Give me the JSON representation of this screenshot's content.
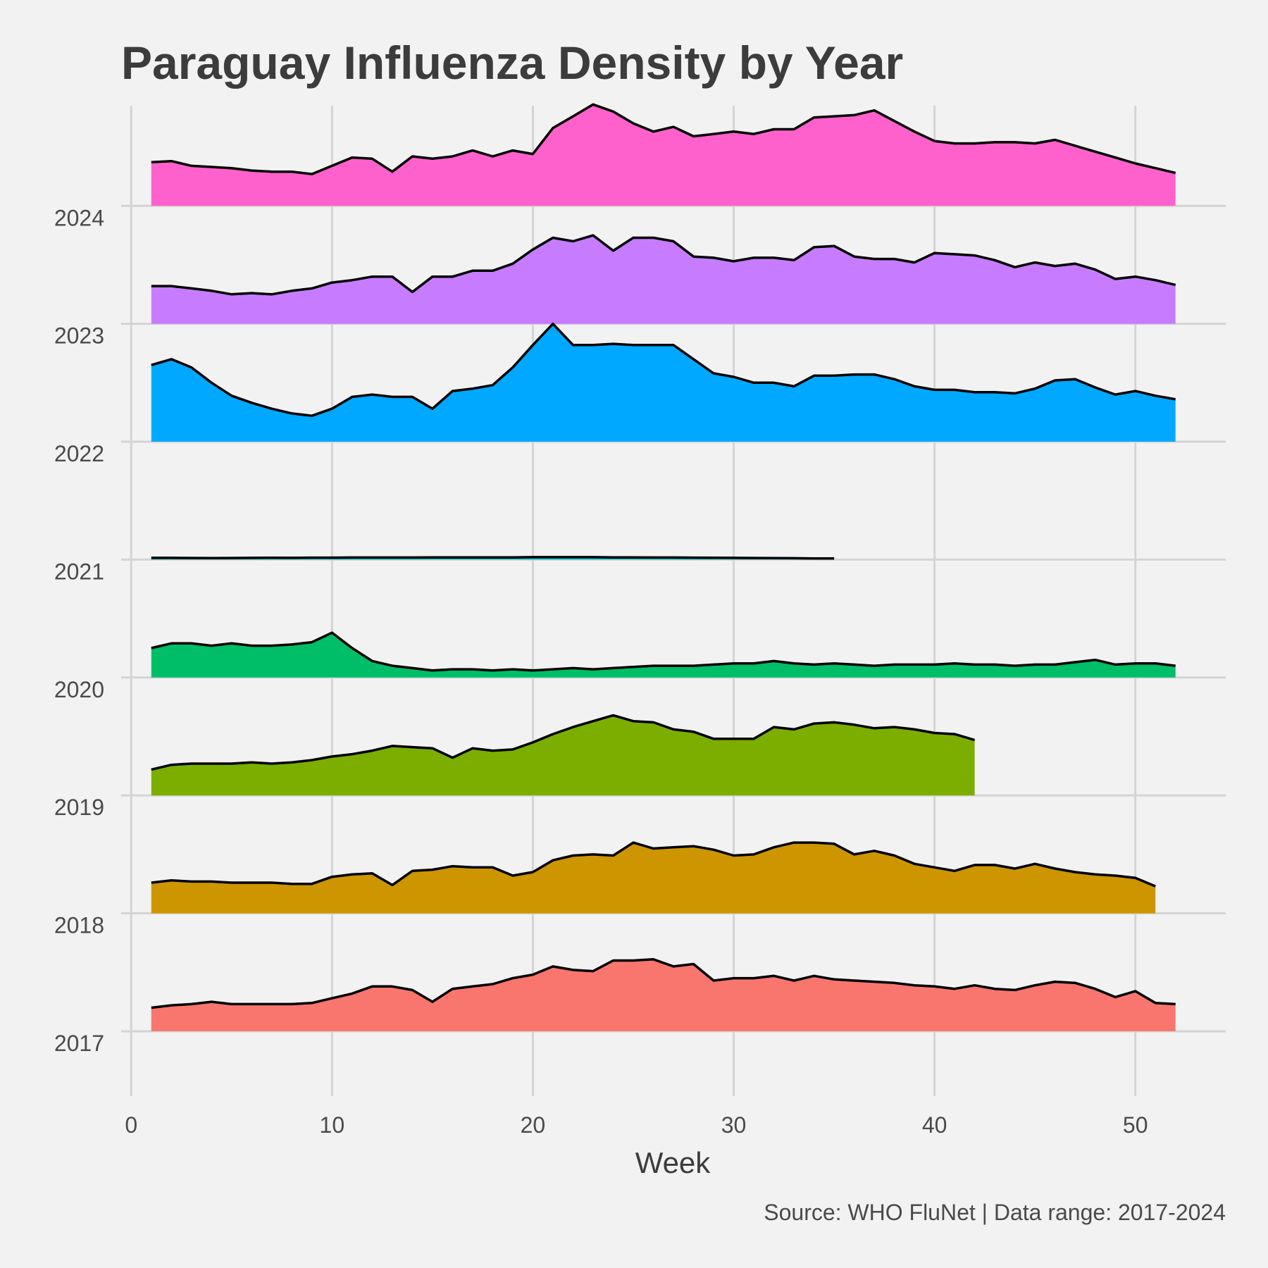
{
  "chart_data": {
    "type": "area",
    "title": "Paraguay Influenza Density by Year",
    "xlabel": "Week",
    "ylabel": "",
    "caption": "Source: WHO FluNet | Data range: 2017-2024",
    "xlim": [
      -0.5,
      54.5
    ],
    "x_ticks": [
      0,
      10,
      20,
      30,
      40,
      50
    ],
    "ylim": [
      2016.45,
      2024.85
    ],
    "y_ticks": [
      2017,
      2018,
      2019,
      2020,
      2021,
      2022,
      2023,
      2024
    ],
    "grid": true,
    "legend": "none",
    "series": [
      {
        "name": "2017",
        "color": "#F8766D",
        "baseline": 2017,
        "start_week": 1,
        "values": [
          0.2,
          0.22,
          0.23,
          0.25,
          0.23,
          0.23,
          0.23,
          0.23,
          0.24,
          0.28,
          0.32,
          0.38,
          0.38,
          0.35,
          0.25,
          0.36,
          0.38,
          0.4,
          0.45,
          0.48,
          0.55,
          0.52,
          0.51,
          0.6,
          0.6,
          0.61,
          0.55,
          0.57,
          0.43,
          0.45,
          0.45,
          0.47,
          0.43,
          0.47,
          0.44,
          0.43,
          0.42,
          0.41,
          0.39,
          0.38,
          0.36,
          0.39,
          0.36,
          0.35,
          0.39,
          0.42,
          0.41,
          0.36,
          0.29,
          0.34,
          0.24,
          0.23
        ]
      },
      {
        "name": "2018",
        "color": "#CD9600",
        "baseline": 2018,
        "start_week": 1,
        "values": [
          0.26,
          0.28,
          0.27,
          0.27,
          0.26,
          0.26,
          0.26,
          0.25,
          0.25,
          0.31,
          0.33,
          0.34,
          0.24,
          0.36,
          0.37,
          0.4,
          0.39,
          0.39,
          0.32,
          0.35,
          0.45,
          0.49,
          0.5,
          0.49,
          0.6,
          0.55,
          0.56,
          0.57,
          0.54,
          0.49,
          0.5,
          0.56,
          0.6,
          0.6,
          0.59,
          0.5,
          0.53,
          0.49,
          0.42,
          0.39,
          0.36,
          0.41,
          0.41,
          0.38,
          0.42,
          0.38,
          0.35,
          0.33,
          0.32,
          0.3,
          0.23
        ]
      },
      {
        "name": "2019",
        "color": "#7CAE00",
        "baseline": 2019,
        "start_week": 1,
        "values": [
          0.22,
          0.26,
          0.27,
          0.27,
          0.27,
          0.28,
          0.27,
          0.28,
          0.3,
          0.33,
          0.35,
          0.38,
          0.42,
          0.41,
          0.4,
          0.32,
          0.4,
          0.38,
          0.39,
          0.45,
          0.52,
          0.58,
          0.63,
          0.68,
          0.63,
          0.62,
          0.56,
          0.54,
          0.48,
          0.48,
          0.48,
          0.58,
          0.56,
          0.61,
          0.62,
          0.6,
          0.57,
          0.58,
          0.56,
          0.53,
          0.52,
          0.47
        ]
      },
      {
        "name": "2020",
        "color": "#00BE67",
        "baseline": 2020,
        "start_week": 1,
        "values": [
          0.25,
          0.29,
          0.29,
          0.27,
          0.29,
          0.27,
          0.27,
          0.28,
          0.3,
          0.38,
          0.25,
          0.14,
          0.1,
          0.08,
          0.06,
          0.07,
          0.07,
          0.06,
          0.07,
          0.06,
          0.07,
          0.08,
          0.07,
          0.08,
          0.09,
          0.1,
          0.1,
          0.1,
          0.11,
          0.12,
          0.12,
          0.14,
          0.12,
          0.11,
          0.12,
          0.11,
          0.1,
          0.11,
          0.11,
          0.11,
          0.12,
          0.11,
          0.11,
          0.1,
          0.11,
          0.11,
          0.13,
          0.15,
          0.11,
          0.12,
          0.12,
          0.1
        ]
      },
      {
        "name": "2021",
        "color": "#00BFC4",
        "baseline": 2021,
        "start_week": 1,
        "values": [
          0.015,
          0.015,
          0.014,
          0.013,
          0.014,
          0.015,
          0.016,
          0.015,
          0.017,
          0.017,
          0.018,
          0.018,
          0.018,
          0.018,
          0.019,
          0.019,
          0.019,
          0.019,
          0.019,
          0.021,
          0.021,
          0.021,
          0.021,
          0.019,
          0.019,
          0.018,
          0.018,
          0.017,
          0.016,
          0.015,
          0.014,
          0.013,
          0.012,
          0.01,
          0.01
        ]
      },
      {
        "name": "2022",
        "color": "#00A9FF",
        "baseline": 2022,
        "start_week": 1,
        "values": [
          0.65,
          0.7,
          0.63,
          0.5,
          0.39,
          0.33,
          0.28,
          0.24,
          0.22,
          0.28,
          0.38,
          0.4,
          0.38,
          0.38,
          0.28,
          0.43,
          0.45,
          0.48,
          0.63,
          0.82,
          1.0,
          0.82,
          0.82,
          0.83,
          0.82,
          0.82,
          0.82,
          0.7,
          0.58,
          0.55,
          0.5,
          0.5,
          0.47,
          0.56,
          0.56,
          0.57,
          0.57,
          0.53,
          0.47,
          0.44,
          0.44,
          0.42,
          0.42,
          0.41,
          0.45,
          0.52,
          0.53,
          0.46,
          0.4,
          0.43,
          0.39,
          0.36
        ]
      },
      {
        "name": "2023",
        "color": "#C77CFF",
        "baseline": 2023,
        "start_week": 1,
        "values": [
          0.32,
          0.32,
          0.3,
          0.28,
          0.25,
          0.26,
          0.25,
          0.28,
          0.3,
          0.35,
          0.37,
          0.4,
          0.4,
          0.27,
          0.4,
          0.4,
          0.45,
          0.45,
          0.51,
          0.63,
          0.73,
          0.7,
          0.75,
          0.62,
          0.73,
          0.73,
          0.7,
          0.57,
          0.56,
          0.53,
          0.56,
          0.56,
          0.54,
          0.65,
          0.66,
          0.57,
          0.55,
          0.55,
          0.52,
          0.6,
          0.59,
          0.58,
          0.54,
          0.48,
          0.52,
          0.49,
          0.51,
          0.46,
          0.38,
          0.4,
          0.37,
          0.33
        ]
      },
      {
        "name": "2024",
        "color": "#FF61CC",
        "baseline": 2024,
        "start_week": 1,
        "values": [
          0.37,
          0.38,
          0.34,
          0.33,
          0.32,
          0.3,
          0.29,
          0.29,
          0.27,
          0.34,
          0.41,
          0.4,
          0.29,
          0.42,
          0.4,
          0.42,
          0.47,
          0.42,
          0.47,
          0.44,
          0.66,
          0.76,
          0.86,
          0.8,
          0.7,
          0.63,
          0.67,
          0.59,
          0.61,
          0.63,
          0.61,
          0.65,
          0.65,
          0.75,
          0.76,
          0.77,
          0.81,
          0.72,
          0.63,
          0.55,
          0.53,
          0.53,
          0.54,
          0.54,
          0.53,
          0.56,
          0.51,
          0.46,
          0.41,
          0.36,
          0.32,
          0.28
        ]
      }
    ]
  }
}
